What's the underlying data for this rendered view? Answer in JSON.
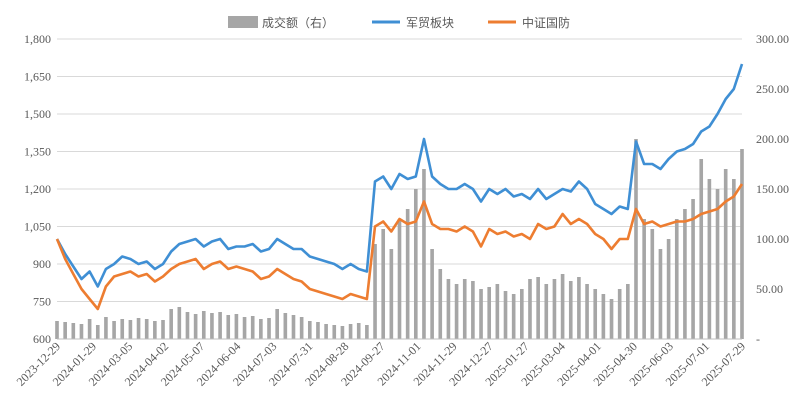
{
  "legend": {
    "volume": "成交额（右）",
    "sector": "军贸板块",
    "index": "中证国防"
  },
  "colors": {
    "volume": "#a6a6a6",
    "sector": "#3f8fd4",
    "index": "#ed7d31",
    "axis_text": "#595959",
    "grid": "#d9d9d9"
  },
  "chart_data": {
    "type": "line",
    "title": "",
    "xlabel": "",
    "ylabel": "",
    "grid": "horizontal",
    "legend_position": "top",
    "x": [
      "2023-12-29",
      "2024-01-05",
      "2024-01-12",
      "2024-01-19",
      "2024-01-26",
      "2024-02-02",
      "2024-02-09",
      "2024-02-16",
      "2024-02-23",
      "2024-03-01",
      "2024-03-08",
      "2024-03-15",
      "2024-03-22",
      "2024-03-29",
      "2024-04-05",
      "2024-04-12",
      "2024-04-19",
      "2024-04-26",
      "2024-05-03",
      "2024-05-10",
      "2024-05-17",
      "2024-05-24",
      "2024-05-31",
      "2024-06-07",
      "2024-06-14",
      "2024-06-21",
      "2024-06-28",
      "2024-07-05",
      "2024-07-12",
      "2024-07-19",
      "2024-07-26",
      "2024-08-02",
      "2024-08-09",
      "2024-08-16",
      "2024-08-23",
      "2024-08-30",
      "2024-09-06",
      "2024-09-13",
      "2024-09-20",
      "2024-09-27",
      "2024-10-04",
      "2024-10-11",
      "2024-10-18",
      "2024-10-25",
      "2024-11-01",
      "2024-11-08",
      "2024-11-15",
      "2024-11-22",
      "2024-11-29",
      "2024-12-06",
      "2024-12-13",
      "2024-12-20",
      "2024-12-27",
      "2025-01-03",
      "2025-01-10",
      "2025-01-17",
      "2025-01-24",
      "2025-01-31",
      "2025-02-07",
      "2025-02-14",
      "2025-02-21",
      "2025-02-28",
      "2025-03-07",
      "2025-03-14",
      "2025-03-21",
      "2025-03-28",
      "2025-04-04",
      "2025-04-11",
      "2025-04-18",
      "2025-04-25",
      "2025-05-02",
      "2025-05-09",
      "2025-05-16",
      "2025-05-23",
      "2025-05-30",
      "2025-06-06",
      "2025-06-13",
      "2025-06-20",
      "2025-06-27",
      "2025-07-04",
      "2025-07-11",
      "2025-07-18",
      "2025-07-25",
      "2025-08-01",
      "2025-08-08"
    ],
    "x_tick_labels": [
      "2023-12-29",
      "2024-01-29",
      "2024-03-05",
      "2024-04-02",
      "2024-05-07",
      "2024-06-04",
      "2024-07-03",
      "2024-07-31",
      "2024-08-28",
      "2024-09-27",
      "2024-11-01",
      "2024-11-29",
      "2024-12-27",
      "2025-01-27",
      "2025-03-04",
      "2025-04-01",
      "2025-04-30",
      "2025-06-03",
      "2025-07-01",
      "2025-07-29"
    ],
    "y_left": {
      "min": 600,
      "max": 1800,
      "ticks": [
        "600",
        "750",
        "900",
        "1,050",
        "1,200",
        "1,350",
        "1,500",
        "1,650",
        "1,800"
      ]
    },
    "y_right": {
      "min": 0,
      "max": 300,
      "ticks": [
        "-",
        "50.00",
        "100.00",
        "150.00",
        "200.00",
        "250.00",
        "300.00"
      ]
    },
    "series": [
      {
        "name": "军贸板块",
        "axis": "left",
        "values": [
          1000,
          940,
          890,
          840,
          870,
          810,
          880,
          900,
          930,
          920,
          900,
          910,
          880,
          900,
          950,
          980,
          990,
          1000,
          970,
          990,
          1000,
          960,
          970,
          970,
          980,
          950,
          960,
          1000,
          980,
          960,
          960,
          930,
          920,
          910,
          900,
          880,
          900,
          880,
          870,
          1230,
          1250,
          1200,
          1260,
          1240,
          1250,
          1400,
          1250,
          1220,
          1200,
          1200,
          1220,
          1200,
          1150,
          1200,
          1180,
          1200,
          1170,
          1180,
          1160,
          1200,
          1160,
          1180,
          1200,
          1190,
          1230,
          1200,
          1140,
          1120,
          1100,
          1130,
          1120,
          1390,
          1300,
          1300,
          1280,
          1320,
          1350,
          1360,
          1380,
          1430,
          1450,
          1500,
          1560,
          1600,
          1700
        ]
      },
      {
        "name": "中证国防",
        "axis": "left",
        "values": [
          1000,
          920,
          860,
          800,
          760,
          720,
          810,
          850,
          860,
          870,
          850,
          860,
          830,
          850,
          880,
          900,
          910,
          920,
          880,
          900,
          910,
          880,
          890,
          880,
          870,
          840,
          850,
          880,
          860,
          840,
          830,
          800,
          790,
          780,
          770,
          760,
          780,
          770,
          760,
          1050,
          1070,
          1030,
          1080,
          1060,
          1070,
          1150,
          1060,
          1040,
          1040,
          1030,
          1050,
          1030,
          970,
          1040,
          1020,
          1030,
          1010,
          1020,
          1000,
          1060,
          1040,
          1050,
          1100,
          1060,
          1080,
          1060,
          1020,
          1000,
          960,
          1000,
          1000,
          1120,
          1060,
          1070,
          1050,
          1060,
          1070,
          1070,
          1080,
          1100,
          1110,
          1120,
          1150,
          1170,
          1220
        ]
      },
      {
        "name": "成交额（右）",
        "axis": "right",
        "values": [
          18,
          17,
          16,
          15,
          20,
          14,
          22,
          18,
          20,
          19,
          21,
          20,
          18,
          19,
          30,
          32,
          27,
          25,
          28,
          26,
          27,
          24,
          25,
          22,
          23,
          20,
          21,
          30,
          26,
          24,
          22,
          18,
          17,
          15,
          14,
          13,
          15,
          16,
          14,
          95,
          110,
          90,
          120,
          130,
          150,
          170,
          90,
          70,
          60,
          55,
          60,
          58,
          50,
          52,
          55,
          48,
          45,
          50,
          60,
          62,
          55,
          60,
          65,
          58,
          62,
          55,
          50,
          45,
          40,
          50,
          55,
          200,
          120,
          110,
          90,
          100,
          120,
          130,
          140,
          180,
          160,
          150,
          170,
          160,
          190
        ]
      }
    ]
  }
}
